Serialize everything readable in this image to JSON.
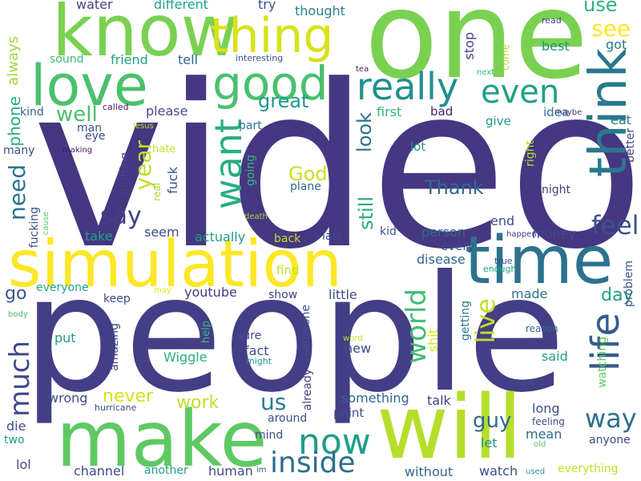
{
  "background": "#ffffff",
  "words": [
    {
      "text": "video",
      "color": "#453781"
    },
    {
      "text": "people",
      "color": "#433e85"
    },
    {
      "text": "one",
      "color": "#7ad151"
    },
    {
      "text": "simulation",
      "color": "#fde725"
    },
    {
      "text": "time",
      "color": "#2c728e"
    },
    {
      "text": "will",
      "color": "#b5de2b"
    },
    {
      "text": "make",
      "color": "#5ec962"
    },
    {
      "text": "know",
      "color": "#7ad151"
    },
    {
      "text": "love",
      "color": "#4ac16d"
    },
    {
      "text": "thing",
      "color": "#d8e219"
    },
    {
      "text": "good",
      "color": "#48c16e"
    },
    {
      "text": "think",
      "color": "#2a788e"
    },
    {
      "text": "really",
      "color": "#21908d"
    },
    {
      "text": "even",
      "color": "#1fa187"
    },
    {
      "text": "want",
      "color": "#27ad81"
    },
    {
      "text": "life",
      "color": "#365c8d"
    },
    {
      "text": "feel",
      "color": "#3b528b"
    },
    {
      "text": "say",
      "color": "#424086"
    },
    {
      "text": "now",
      "color": "#1f9e89"
    },
    {
      "text": "inside",
      "color": "#2e6f8e"
    },
    {
      "text": "much",
      "color": "#3f4889"
    },
    {
      "text": "way",
      "color": "#2d708e"
    },
    {
      "text": "world",
      "color": "#3fbc73"
    },
    {
      "text": "live",
      "color": "#c2df23"
    },
    {
      "text": "year",
      "color": "#bddf26"
    },
    {
      "text": "see",
      "color": "#fde725"
    },
    {
      "text": "use",
      "color": "#2db27d"
    },
    {
      "text": "need",
      "color": "#2c728e"
    },
    {
      "text": "great",
      "color": "#1f9a8a"
    },
    {
      "text": "us",
      "color": "#287c8e"
    },
    {
      "text": "well",
      "color": "#4ac16d"
    },
    {
      "text": "God",
      "color": "#c8e020"
    },
    {
      "text": "Thank",
      "color": "#31688e"
    },
    {
      "text": "look",
      "color": "#2c728e"
    },
    {
      "text": "still",
      "color": "#25ab82"
    },
    {
      "text": "never",
      "color": "#d2e21b"
    },
    {
      "text": "work",
      "color": "#c0df25"
    },
    {
      "text": "guy",
      "color": "#30698e"
    },
    {
      "text": "phone",
      "color": "#29af7f"
    },
    {
      "text": "always",
      "color": "#9dd93b"
    },
    {
      "text": "go",
      "color": "#39568c"
    },
    {
      "text": "day",
      "color": "#1fa088"
    },
    {
      "text": "water",
      "color": "#404588"
    },
    {
      "text": "different",
      "color": "#1fa187"
    },
    {
      "text": "try",
      "color": "#3b528b"
    },
    {
      "text": "thought",
      "color": "#26828e"
    },
    {
      "text": "got",
      "color": "#2a788e"
    },
    {
      "text": "best",
      "color": "#21908d"
    },
    {
      "text": "sound",
      "color": "#3fbc73"
    },
    {
      "text": "friend",
      "color": "#1f9e89"
    },
    {
      "text": "tell",
      "color": "#31688e"
    },
    {
      "text": "interesting",
      "color": "#3b528b"
    },
    {
      "text": "read",
      "color": "#433e85"
    },
    {
      "text": "tea",
      "color": "#481f70"
    },
    {
      "text": "next",
      "color": "#2db27d"
    },
    {
      "text": "stop",
      "color": "#424086"
    },
    {
      "text": "come",
      "color": "#addc30"
    },
    {
      "text": "kind",
      "color": "#32648e"
    },
    {
      "text": "called",
      "color": "#481a6c"
    },
    {
      "text": "please",
      "color": "#3e4c8a"
    },
    {
      "text": "first",
      "color": "#2fb47c"
    },
    {
      "text": "bad",
      "color": "#481b6d"
    },
    {
      "text": "give",
      "color": "#1f9e89"
    },
    {
      "text": "idea",
      "color": "#2a788e"
    },
    {
      "text": "maybe",
      "color": "#46337f"
    },
    {
      "text": "eat",
      "color": "#2a788e"
    },
    {
      "text": "man",
      "color": "#3b528b"
    },
    {
      "text": "eye",
      "color": "#3e4989"
    },
    {
      "text": "Jesus",
      "color": "#b8de29"
    },
    {
      "text": "part",
      "color": "#2c728e"
    },
    {
      "text": "lot",
      "color": "#1f9a8a"
    },
    {
      "text": "right",
      "color": "#b5de2b"
    },
    {
      "text": "better",
      "color": "#404588"
    },
    {
      "text": "many",
      "color": "#3e4989"
    },
    {
      "text": "making",
      "color": "#471063"
    },
    {
      "text": "nothing",
      "color": "#414487"
    },
    {
      "text": "hate",
      "color": "#c2df23"
    },
    {
      "text": "real",
      "color": "#9fda3a"
    },
    {
      "text": "fuck",
      "color": "#3b528b"
    },
    {
      "text": "going",
      "color": "#35b779"
    },
    {
      "text": "plane",
      "color": "#31688e"
    },
    {
      "text": "night",
      "color": "#443983"
    },
    {
      "text": "fucking",
      "color": "#3b528b"
    },
    {
      "text": "death",
      "color": "#a0da39"
    },
    {
      "text": "cause",
      "color": "#5ec962"
    },
    {
      "text": "take",
      "color": "#1f9e89"
    },
    {
      "text": "seem",
      "color": "#3e4c8a"
    },
    {
      "text": "actually",
      "color": "#1f9e89"
    },
    {
      "text": "back",
      "color": "#c2df23"
    },
    {
      "text": "last",
      "color": "#3e4a89"
    },
    {
      "text": "kid",
      "color": "#3b528b"
    },
    {
      "text": "person",
      "color": "#31688e"
    },
    {
      "text": "end",
      "color": "#3e4c8a"
    },
    {
      "text": "every",
      "color": "#3e4c8a"
    },
    {
      "text": "money",
      "color": "#3e4c8a"
    },
    {
      "text": "happen",
      "color": "#433e85"
    },
    {
      "text": "find",
      "color": "#c2df23"
    },
    {
      "text": "disease",
      "color": "#31688e"
    },
    {
      "text": "true",
      "color": "#3e4c8a"
    },
    {
      "text": "enough",
      "color": "#1f9e89"
    },
    {
      "text": "problem",
      "color": "#39568c"
    },
    {
      "text": "everyone",
      "color": "#1fa187"
    },
    {
      "text": "may",
      "color": "#e5e419"
    },
    {
      "text": "keep",
      "color": "#3e4c8a"
    },
    {
      "text": "youtube",
      "color": "#433e85"
    },
    {
      "text": "show",
      "color": "#414487"
    },
    {
      "text": "someone",
      "color": "#3e4c8a"
    },
    {
      "text": "little",
      "color": "#3e4c8a"
    },
    {
      "text": "made",
      "color": "#2c728e"
    },
    {
      "text": "getting",
      "color": "#2a788e"
    },
    {
      "text": "watching",
      "color": "#5ec962"
    },
    {
      "text": "body",
      "color": "#4ac16d"
    },
    {
      "text": "put",
      "color": "#1f9e89"
    },
    {
      "text": "amazing",
      "color": "#404588"
    },
    {
      "text": "help",
      "color": "#35b779"
    },
    {
      "text": "sure",
      "color": "#3e4c8a"
    },
    {
      "text": "fact",
      "color": "#3e4c8a"
    },
    {
      "text": "already",
      "color": "#404588"
    },
    {
      "text": "Wiggle",
      "color": "#29af7f"
    },
    {
      "text": "might",
      "color": "#21908d"
    },
    {
      "text": "word",
      "color": "#c2df23"
    },
    {
      "text": "shit",
      "color": "#dde318"
    },
    {
      "text": "new",
      "color": "#3e4c8a"
    },
    {
      "text": "reason",
      "color": "#31688e"
    },
    {
      "text": "said",
      "color": "#1f9e89"
    },
    {
      "text": "hurt",
      "color": "#3b528b"
    },
    {
      "text": "wrong",
      "color": "#3e4c8a"
    },
    {
      "text": "something",
      "color": "#31688e"
    },
    {
      "text": "talk",
      "color": "#404588"
    },
    {
      "text": "long",
      "color": "#3b528b"
    },
    {
      "text": "feeling",
      "color": "#3e4c8a"
    },
    {
      "text": "hurricane",
      "color": "#3e4c8a"
    },
    {
      "text": "point",
      "color": "#3e4c8a"
    },
    {
      "text": "die",
      "color": "#3e4c8a"
    },
    {
      "text": "around",
      "color": "#3e4c8a"
    },
    {
      "text": "mind",
      "color": "#3e4c8a"
    },
    {
      "text": "let",
      "color": "#21908d"
    },
    {
      "text": "mean",
      "color": "#31688e"
    },
    {
      "text": "anyone",
      "color": "#3e4c8a"
    },
    {
      "text": "two",
      "color": "#1f9e89"
    },
    {
      "text": "old",
      "color": "#5ec962"
    },
    {
      "text": "lol",
      "color": "#3e4c8a"
    },
    {
      "text": "channel",
      "color": "#3e4c8a"
    },
    {
      "text": "another",
      "color": "#1f9e89"
    },
    {
      "text": "human",
      "color": "#3e4c8a"
    },
    {
      "text": "im",
      "color": "#3e4c8a"
    },
    {
      "text": "without",
      "color": "#31688e"
    },
    {
      "text": "watch",
      "color": "#3e4c8a"
    },
    {
      "text": "used",
      "color": "#1f9e89"
    },
    {
      "text": "everything",
      "color": "#c2df23"
    }
  ]
}
